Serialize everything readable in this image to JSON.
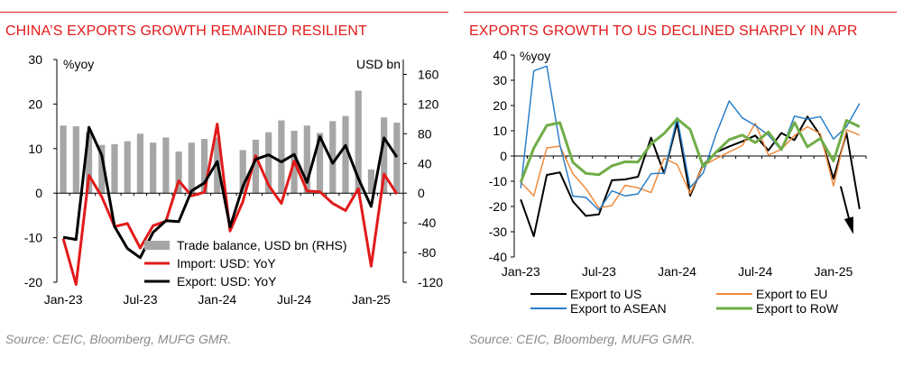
{
  "colors": {
    "accent": "#e21a1a",
    "bar": "#a6a6a6",
    "source": "#8a8a8a"
  },
  "left": {
    "title": "CHINA’S EXPORTS GROWTH REMAINED RESILIENT",
    "source": "Source: CEIC, Bloomberg, MUFG GMR.",
    "unit_left": "%yoy",
    "unit_right": "USD bn"
  },
  "right": {
    "title": "EXPORTS GROWTH TO US DECLINED SHARPLY IN APR",
    "source": "Source: CEIC, Bloomberg, MUFG GMR.",
    "unit_left": "%yoy"
  },
  "chart_data": [
    {
      "type": "bar+line",
      "title": "CHINA’S EXPORTS GROWTH REMAINED RESILIENT",
      "ylabel_left": "%yoy",
      "ylabel_right": "USD bn",
      "ylim_left": [
        -20,
        30
      ],
      "ylim_right": [
        -120,
        180
      ],
      "yticks_left": [
        -20,
        -10,
        0,
        10,
        20,
        30
      ],
      "yticks_right": [
        -120,
        -80,
        -40,
        0,
        40,
        80,
        120,
        160
      ],
      "x_tick_labels": [
        "Jan-23",
        "Jul-23",
        "Jan-24",
        "Jul-24",
        "Jan-25"
      ],
      "x_tick_index": [
        0,
        6,
        12,
        18,
        24
      ],
      "legend": "bottom-center",
      "grid": false,
      "bars": {
        "name": "Trade balance, USD bn (RHS)",
        "axis": "right",
        "values": [
          91,
          90,
          82,
          65,
          66,
          70,
          80,
          68,
          75,
          56,
          68,
          73,
          75,
          0,
          58,
          72,
          82,
          98,
          84,
          91,
          81,
          97,
          104,
          138,
          32,
          102,
          95
        ]
      },
      "series": [
        {
          "name": "Import: USD: YoY",
          "axis": "left",
          "color": "#e21a1a",
          "values": [
            -10.2,
            -20.5,
            4.0,
            -0.8,
            -7.5,
            -6.8,
            -12.3,
            -7.3,
            -6.3,
            2.8,
            -0.6,
            0.2,
            15.5,
            -8.5,
            -1.9,
            8.4,
            1.8,
            -2.3,
            7.2,
            0.5,
            0.3,
            -2.3,
            -3.9,
            1.0,
            -16.4,
            4.3,
            -0.2
          ]
        },
        {
          "name": "Export: USD: YoY",
          "axis": "left",
          "color": "#000000",
          "values": [
            -9.9,
            -10.4,
            14.8,
            8.5,
            -7.5,
            -12.4,
            -14.5,
            -8.8,
            -6.2,
            -6.4,
            0.5,
            2.3,
            7.1,
            -7.6,
            1.5,
            7.6,
            8.6,
            7.0,
            8.7,
            2.4,
            12.7,
            6.7,
            10.7,
            3.3,
            -3.0,
            12.4,
            8.1
          ]
        }
      ]
    },
    {
      "type": "line",
      "title": "EXPORTS GROWTH TO US DECLINED SHARPLY IN APR",
      "ylabel": "%yoy",
      "ylim": [
        -40,
        40
      ],
      "yticks": [
        -40,
        -30,
        -20,
        -10,
        0,
        10,
        20,
        30,
        40
      ],
      "x_tick_labels": [
        "Jan-23",
        "Jul-23",
        "Jan-24",
        "Jul-24",
        "Jan-25"
      ],
      "x_tick_index": [
        0,
        6,
        12,
        18,
        24
      ],
      "legend": "bottom",
      "grid": false,
      "annotation": "downward arrow at Apr-25",
      "series": [
        {
          "name": "Export to US",
          "color": "#000000",
          "values": [
            -17.2,
            -31.8,
            -7.5,
            -6.5,
            -18.0,
            -23.7,
            -23.1,
            -9.6,
            -9.3,
            -8.2,
            7.3,
            -6.9,
            13.2,
            -15.7,
            -3.5,
            1.5,
            3.8,
            5.8,
            8.1,
            2.2,
            9.1,
            6.3,
            15.6,
            8.1,
            -9.0,
            9.1,
            -21.0
          ]
        },
        {
          "name": "Export to EU",
          "color": "#f08a3c",
          "values": [
            -10.4,
            -15.8,
            3.2,
            3.9,
            -7.0,
            -12.9,
            -20.6,
            -19.6,
            -11.6,
            -12.6,
            -14.5,
            -0.9,
            -3.4,
            -14.9,
            -3.9,
            -1.0,
            1.6,
            4.1,
            13.0,
            0.4,
            2.6,
            8.1,
            11.6,
            8.8,
            -11.9,
            10.4,
            8.3
          ]
        },
        {
          "name": "Export to ASEAN",
          "color": "#2a7fc9",
          "values": [
            -12.8,
            33.7,
            35.6,
            4.5,
            -15.9,
            -16.4,
            -21.4,
            -13.8,
            -15.8,
            -15.0,
            -7.0,
            -6.8,
            15.2,
            -12.5,
            -6.8,
            8.8,
            21.8,
            15.1,
            12.1,
            8.3,
            2.2,
            15.8,
            14.6,
            15.6,
            6.7,
            11.6,
            20.8
          ]
        },
        {
          "name": "Export to RoW",
          "color": "#70ad47",
          "values": [
            -10.5,
            3.1,
            12.1,
            13.2,
            -2.5,
            -6.9,
            -7.4,
            -3.9,
            -2.3,
            -2.4,
            4.8,
            8.9,
            14.7,
            10.5,
            -4.1,
            1.6,
            6.5,
            8.3,
            5.3,
            9.5,
            2.6,
            13.3,
            3.6,
            7.0,
            -2.0,
            14.1,
            11.6
          ]
        }
      ]
    }
  ]
}
